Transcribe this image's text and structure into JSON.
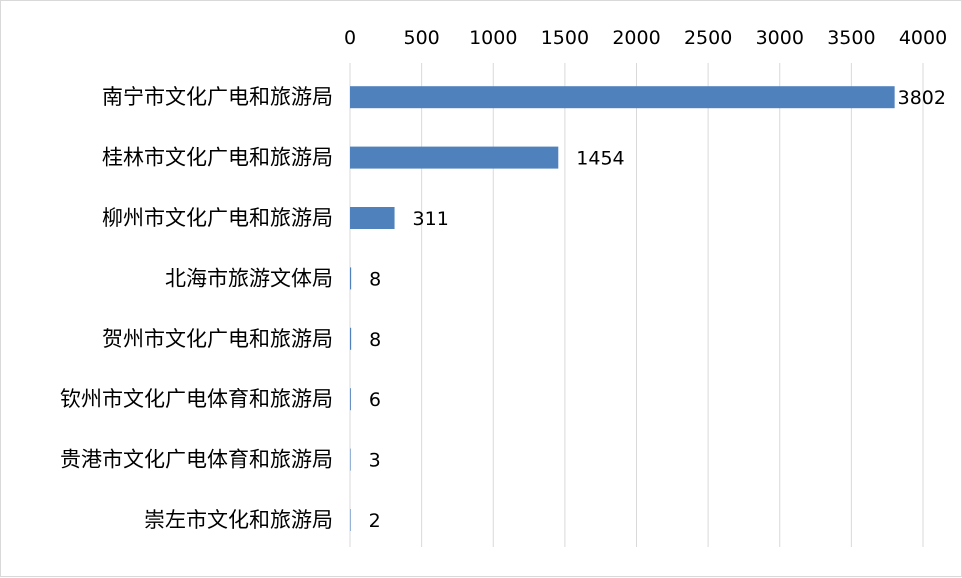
{
  "chart_data": {
    "type": "bar",
    "orientation": "horizontal",
    "categories": [
      "南宁市文化广电和旅游局",
      "桂林市文化广电和旅游局",
      "柳州市文化广电和旅游局",
      "北海市旅游文体局",
      "贺州市文化广电和旅游局",
      "钦州市文化广电体育和旅游局",
      "贵港市文化广电体育和旅游局",
      "崇左市文化和旅游局"
    ],
    "values": [
      3802,
      1454,
      311,
      8,
      8,
      6,
      3,
      2
    ],
    "data_labels": [
      "3802",
      "1454",
      "311",
      "8",
      "8",
      "6",
      "3",
      "2"
    ],
    "xlim": [
      0,
      4000
    ],
    "x_ticks": [
      0,
      500,
      1000,
      1500,
      2000,
      2500,
      3000,
      3500,
      4000
    ],
    "x_tick_labels": [
      "0",
      "500",
      "1000",
      "1500",
      "2000",
      "2500",
      "3000",
      "3500",
      "4000"
    ],
    "x_axis_position": "top",
    "grid": true,
    "legend": "none",
    "title": "",
    "xlabel": "",
    "ylabel": "",
    "colors": {
      "bar": "#4f81bd",
      "grid": "#d9d9d9",
      "frame": "#d9d9d9"
    }
  }
}
